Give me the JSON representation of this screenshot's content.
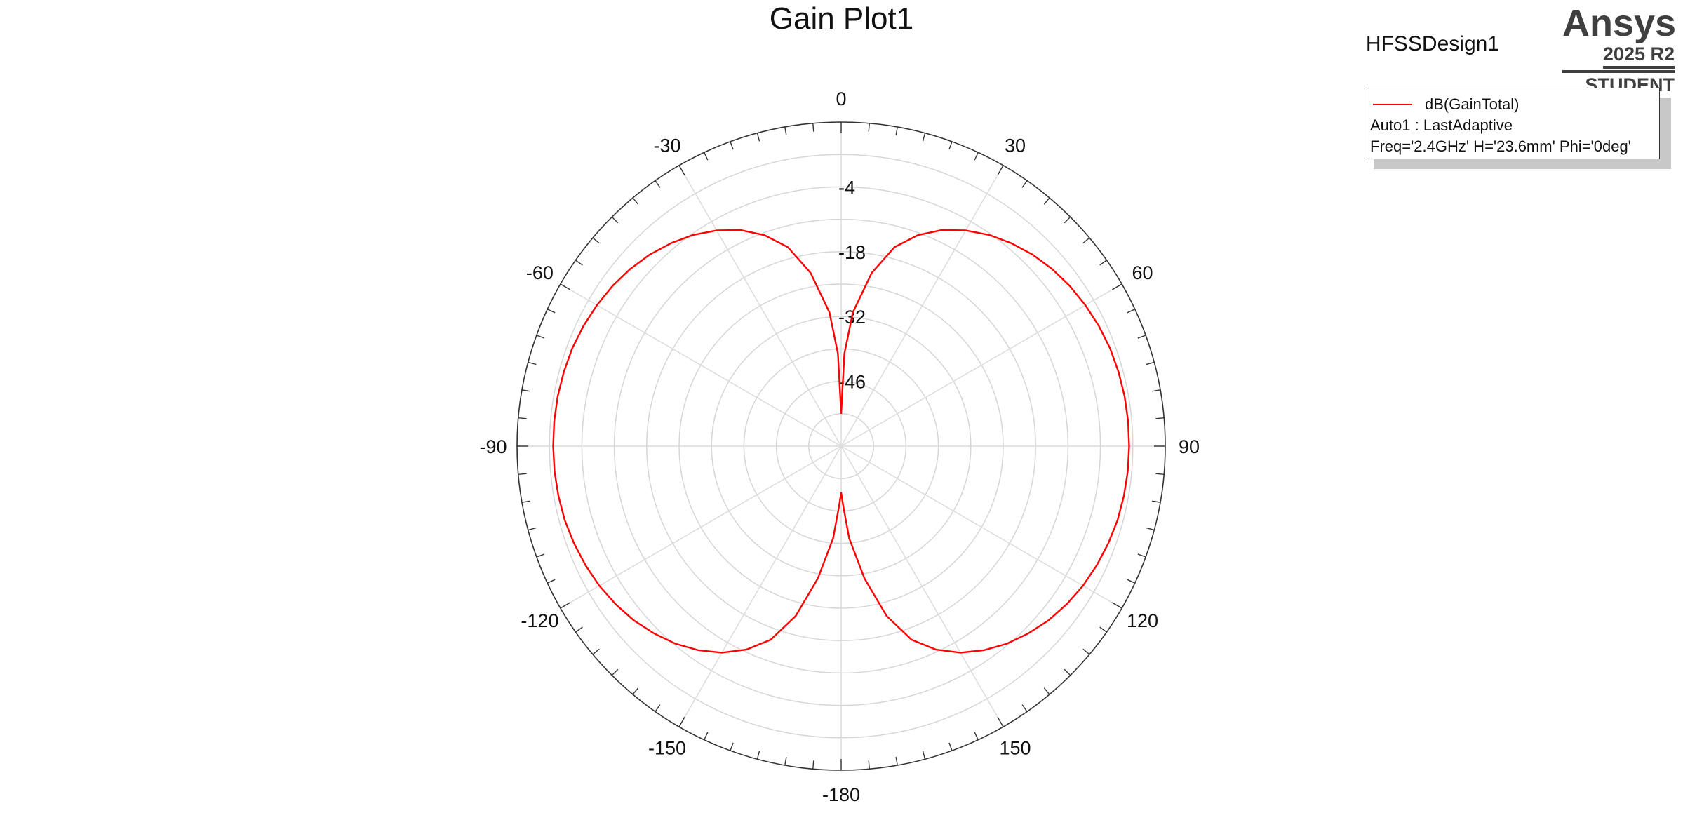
{
  "chart_data": {
    "type": "polar-line",
    "title": "Gain Plot1",
    "design_name": "HFSSDesign1",
    "angle_labels": [
      {
        "angle": 0,
        "label": "0"
      },
      {
        "angle": 30,
        "label": "30"
      },
      {
        "angle": 60,
        "label": "60"
      },
      {
        "angle": 90,
        "label": "90"
      },
      {
        "angle": 120,
        "label": "120"
      },
      {
        "angle": 150,
        "label": "150"
      },
      {
        "angle": 180,
        "label": "-180"
      },
      {
        "angle": -150,
        "label": "-150"
      },
      {
        "angle": -120,
        "label": "-120"
      },
      {
        "angle": -90,
        "label": "-90"
      },
      {
        "angle": -60,
        "label": "-60"
      },
      {
        "angle": -30,
        "label": "-30"
      }
    ],
    "radial_range": [
      -60,
      10
    ],
    "radial_ticks": [
      -46,
      -32,
      -18,
      -4
    ],
    "grid": true,
    "legend_position": "top-right",
    "series": [
      {
        "name": "dB(GainTotal)",
        "color": "#ff0000",
        "theta_deg": [
          0,
          2,
          5,
          10,
          15,
          20,
          25,
          30,
          35,
          40,
          45,
          50,
          55,
          60,
          65,
          70,
          75,
          80,
          85,
          90,
          95,
          100,
          105,
          110,
          115,
          120,
          125,
          130,
          135,
          140,
          145,
          150,
          155,
          160,
          165,
          170,
          175,
          178,
          180
        ],
        "gain_db": [
          -53,
          -40,
          -31,
          -22,
          -15.5,
          -11.5,
          -8.5,
          -6.2,
          -4.3,
          -2.8,
          -1.5,
          -0.5,
          0.3,
          0.9,
          1.4,
          1.8,
          2.0,
          2.15,
          2.2,
          2.2,
          2.15,
          2.0,
          1.8,
          1.4,
          0.9,
          0.3,
          -0.5,
          -1.5,
          -2.8,
          -4.3,
          -6.2,
          -8.5,
          -11.5,
          -15.5,
          -22,
          -31,
          -40,
          -47,
          -50
        ]
      }
    ]
  },
  "legend": {
    "series_label": "dB(GainTotal)",
    "setup": "Auto1 : LastAdaptive",
    "params": "Freq='2.4GHz' H='23.6mm' Phi='0deg'"
  },
  "branding": {
    "name": "Ansys",
    "version": "2025 R2",
    "edition": "STUDENT"
  }
}
